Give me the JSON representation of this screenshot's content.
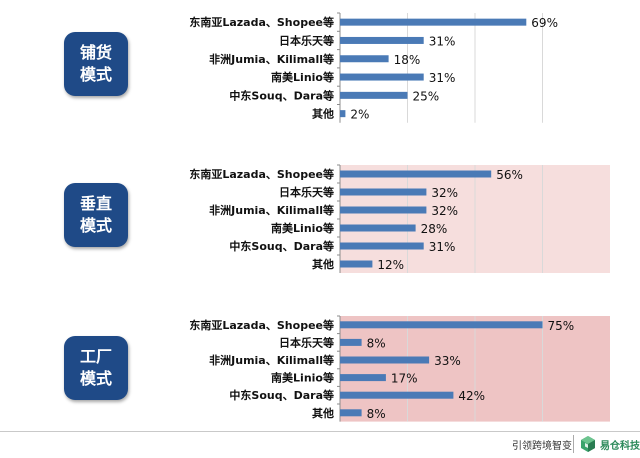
{
  "chart_data": [
    {
      "type": "bar",
      "orientation": "horizontal",
      "group_label": "铺货\n模式",
      "categories": [
        "东南亚Lazada、Shopee等",
        "日本乐天等",
        "非洲Jumia、Kilimall等",
        "南美Linio等",
        "中东Souq、Dara等",
        "其他"
      ],
      "values": [
        69,
        31,
        18,
        31,
        25,
        2
      ],
      "value_labels": [
        "69%",
        "31%",
        "18%",
        "31%",
        "25%",
        "2%"
      ],
      "xlim": [
        0,
        100
      ],
      "background": "#ffffff"
    },
    {
      "type": "bar",
      "orientation": "horizontal",
      "group_label": "垂直\n模式",
      "categories": [
        "东南亚Lazada、Shopee等",
        "日本乐天等",
        "非洲Jumia、Kilimall等",
        "南美Linio等",
        "中东Souq、Dara等",
        "其他"
      ],
      "values": [
        56,
        32,
        32,
        28,
        31,
        12
      ],
      "value_labels": [
        "56%",
        "32%",
        "32%",
        "28%",
        "31%",
        "12%"
      ],
      "xlim": [
        0,
        100
      ],
      "background": "#f6dedd"
    },
    {
      "type": "bar",
      "orientation": "horizontal",
      "group_label": "工厂\n模式",
      "categories": [
        "东南亚Lazada、Shopee等",
        "日本乐天等",
        "非洲Jumia、Kilimall等",
        "南美Linio等",
        "中东Souq、Dara等",
        "其他"
      ],
      "values": [
        75,
        8,
        33,
        17,
        42,
        8
      ],
      "value_labels": [
        "75%",
        "8%",
        "33%",
        "17%",
        "42%",
        "8%"
      ],
      "xlim": [
        0,
        100
      ],
      "background": "#eec4c4"
    }
  ],
  "colors": {
    "bar": "#4a7ab6",
    "label_box": "#1f4a87",
    "grid": "#d9d9d9"
  },
  "footer": {
    "slogan": "引领跨境智变",
    "logo_icon": "cube-logo-icon",
    "logo_text": "易仓科技"
  }
}
